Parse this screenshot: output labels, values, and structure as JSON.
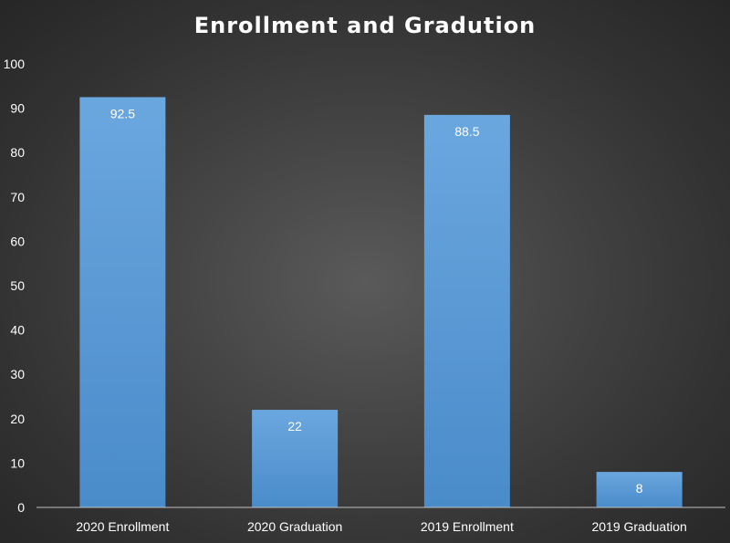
{
  "chart_data": {
    "type": "bar",
    "title": "Enrollment and Gradution",
    "categories": [
      "2020 Enrollment",
      "2020 Graduation",
      "2019 Enrollment",
      "2019 Graduation"
    ],
    "values": [
      92.5,
      22,
      88.5,
      8
    ],
    "data_labels": [
      "92.5",
      "22",
      "88.5",
      "8"
    ],
    "y_ticks": [
      "0",
      "10",
      "20",
      "30",
      "40",
      "50",
      "60",
      "70",
      "80",
      "90",
      "100"
    ],
    "ylim": [
      0,
      100
    ],
    "xlabel": "",
    "ylabel": "",
    "grid": false,
    "legend": "none",
    "colors": {
      "bar": "#5b9bd5",
      "bar_light": "#6ba7df",
      "bar_dark": "#4a8bca",
      "text": "#ffffff",
      "axis": "#bfbfbf"
    }
  }
}
